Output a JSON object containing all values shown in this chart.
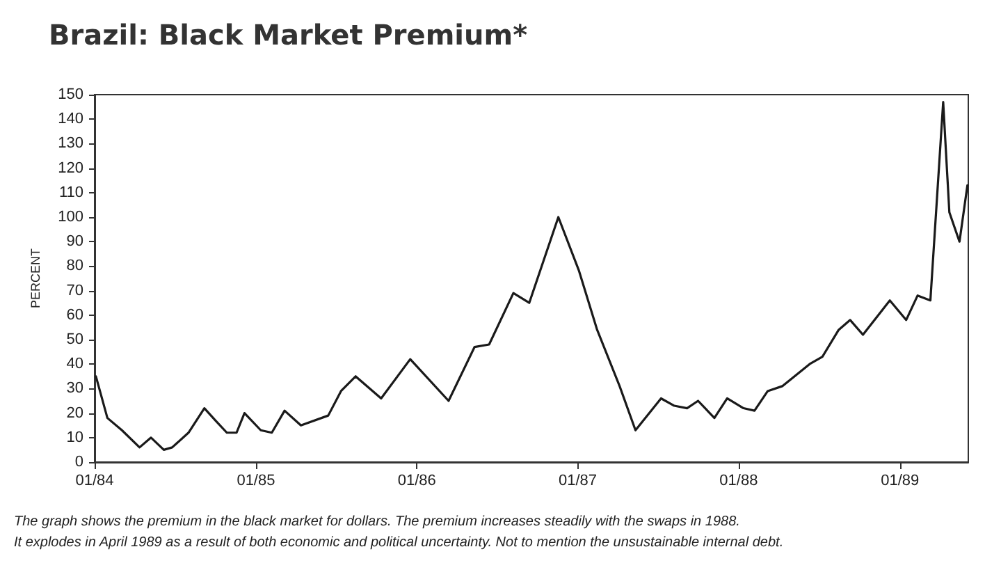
{
  "chart_data": {
    "type": "line",
    "title": "Brazil: Black Market Premium*",
    "ylabel": "PERCENT",
    "x": [
      "1984-01-04",
      "1984-01-30",
      "1984-03-03",
      "1984-04-12",
      "1984-05-08",
      "1984-06-06",
      "1984-06-25",
      "1984-08-01",
      "1984-09-06",
      "1984-10-01",
      "1984-10-27",
      "1984-11-18",
      "1984-12-06",
      "1985-01-12",
      "1985-02-06",
      "1985-03-07",
      "1985-04-13",
      "1985-06-14",
      "1985-07-13",
      "1985-08-15",
      "1985-10-12",
      "1985-12-17",
      "1986-03-14",
      "1986-05-12",
      "1986-06-14",
      "1986-08-08",
      "1986-09-13",
      "1986-11-18",
      "1987-01-04",
      "1987-02-14",
      "1987-04-06",
      "1987-05-12",
      "1987-07-09",
      "1987-08-08",
      "1987-09-06",
      "1987-10-01",
      "1987-11-07",
      "1987-12-06",
      "1988-01-12",
      "1988-02-06",
      "1988-03-07",
      "1988-04-09",
      "1988-06-10",
      "1988-07-09",
      "1988-08-15",
      "1988-09-10",
      "1988-10-09",
      "1988-12-09",
      "1989-01-15",
      "1989-02-10",
      "1989-03-11",
      "1989-04-09",
      "1989-04-23",
      "1989-05-16",
      "1989-06-03"
    ],
    "series": [
      {
        "color": "#1a1a1a",
        "values": [
          35,
          18,
          13,
          6,
          10,
          5,
          6,
          12,
          22,
          17,
          12,
          12,
          20,
          13,
          12,
          21,
          15,
          19,
          29,
          35,
          26,
          42,
          25,
          47,
          48,
          69,
          65,
          100,
          78,
          54,
          31,
          13,
          26,
          23,
          22,
          25,
          18,
          26,
          22,
          21,
          29,
          31,
          40,
          43,
          54,
          58,
          52,
          66,
          58,
          68,
          66,
          147,
          102,
          90,
          113
        ]
      }
    ],
    "xlim": [
      "1984-01-01",
      "1989-06-05"
    ],
    "xticks": [
      {
        "value": "1984-01",
        "label": "01/84"
      },
      {
        "value": "1985-01",
        "label": "01/85"
      },
      {
        "value": "1986-01",
        "label": "01/86"
      },
      {
        "value": "1987-01",
        "label": "01/87"
      },
      {
        "value": "1988-01",
        "label": "01/88"
      },
      {
        "value": "1989-01",
        "label": "01/89"
      }
    ],
    "ylim": [
      0,
      150
    ],
    "yticks": [
      0,
      10,
      20,
      30,
      40,
      50,
      60,
      70,
      80,
      90,
      100,
      110,
      120,
      130,
      140,
      150
    ],
    "grid": false,
    "marker": "none",
    "line_style": "solid",
    "annotations": [
      "The graph shows the premium in the black market for dollars. The premium increases steadily with the swaps in 1988.",
      "It explodes in April 1989 as a result of both economic and political uncertainty. Not to mention the unsustainable internal debt."
    ]
  }
}
